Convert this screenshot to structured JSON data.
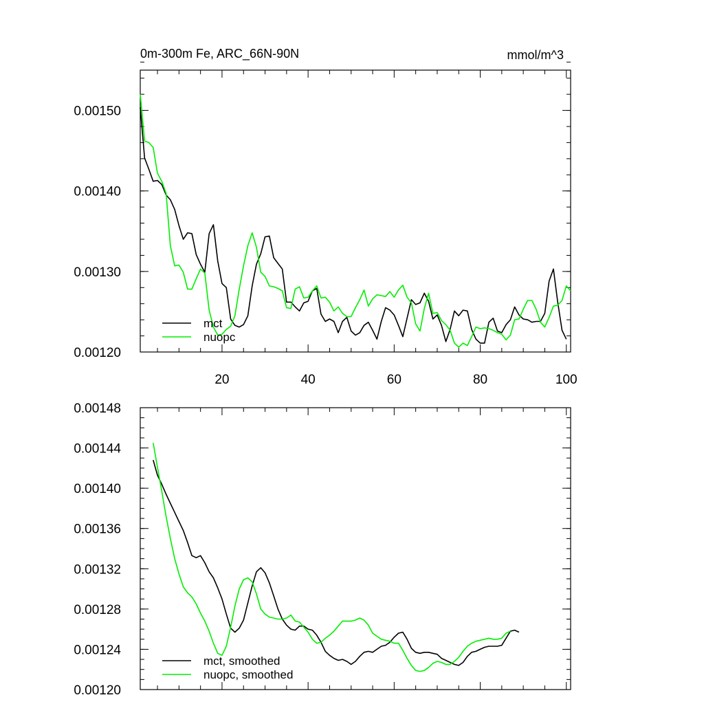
{
  "title_left": "0m-300m Fe, ARC_66N-90N",
  "title_right": "mmol/m^3",
  "chart_data": [
    {
      "type": "line",
      "name": "raw",
      "xlim": [
        1,
        101
      ],
      "ylim": [
        0.0012,
        0.00155
      ],
      "xticks": [
        20,
        40,
        60,
        80,
        100
      ],
      "xtick_labels": [
        "20",
        "40",
        "60",
        "80",
        "100"
      ],
      "yticks": [
        0.0012,
        0.0013,
        0.0014,
        0.0015
      ],
      "ytick_labels": [
        "0.00120",
        "0.00130",
        "0.00140",
        "0.00150"
      ],
      "legend_position": "bottom-left",
      "series": [
        {
          "name": "mct",
          "color": "#000000",
          "x_start": 1,
          "values": [
            0.001504,
            0.001441,
            0.001427,
            0.001412,
            0.001413,
            0.001408,
            0.001395,
            0.001389,
            0.001377,
            0.001357,
            0.00134,
            0.001348,
            0.001347,
            0.001321,
            0.001309,
            0.001299,
            0.001347,
            0.001358,
            0.001313,
            0.001285,
            0.00128,
            0.001241,
            0.001233,
            0.001231,
            0.001234,
            0.001245,
            0.001282,
            0.001309,
            0.001322,
            0.001343,
            0.001344,
            0.001317,
            0.00131,
            0.001303,
            0.001262,
            0.001262,
            0.001256,
            0.001251,
            0.001261,
            0.001263,
            0.001276,
            0.001279,
            0.001247,
            0.001238,
            0.001241,
            0.001238,
            0.001224,
            0.001238,
            0.001243,
            0.001226,
            0.001221,
            0.001224,
            0.001233,
            0.001237,
            0.001227,
            0.001216,
            0.001238,
            0.001255,
            0.001252,
            0.001246,
            0.001233,
            0.001219,
            0.001242,
            0.001265,
            0.001259,
            0.001261,
            0.001273,
            0.001263,
            0.001241,
            0.001246,
            0.001233,
            0.001213,
            0.001228,
            0.001251,
            0.001245,
            0.001252,
            0.001251,
            0.001228,
            0.001216,
            0.001211,
            0.001211,
            0.001237,
            0.001242,
            0.001226,
            0.001224,
            0.001234,
            0.00124,
            0.001256,
            0.001246,
            0.001241,
            0.00124,
            0.001237,
            0.001238,
            0.001238,
            0.001248,
            0.001288,
            0.001303,
            0.001262,
            0.001227,
            0.001216
          ]
        },
        {
          "name": "nuopc",
          "color": "#00ee00",
          "x_start": 1,
          "values": [
            0.00152,
            0.001462,
            0.00146,
            0.001454,
            0.001422,
            0.001412,
            0.001397,
            0.001332,
            0.001307,
            0.001308,
            0.001299,
            0.001278,
            0.001278,
            0.001291,
            0.001303,
            0.001298,
            0.001252,
            0.001231,
            0.001221,
            0.001222,
            0.001228,
            0.001232,
            0.001245,
            0.001278,
            0.001307,
            0.001332,
            0.001348,
            0.00133,
            0.001299,
            0.001294,
            0.001282,
            0.001281,
            0.001279,
            0.001276,
            0.001255,
            0.001254,
            0.001278,
            0.001281,
            0.001267,
            0.001268,
            0.001276,
            0.001282,
            0.001267,
            0.001268,
            0.001262,
            0.001251,
            0.001256,
            0.001248,
            0.001244,
            0.001244,
            0.001255,
            0.001265,
            0.001277,
            0.001257,
            0.001266,
            0.001271,
            0.00127,
            0.001269,
            0.001275,
            0.001268,
            0.001277,
            0.001283,
            0.001268,
            0.001261,
            0.001235,
            0.001226,
            0.001254,
            0.001273,
            0.001248,
            0.001249,
            0.001239,
            0.001234,
            0.001227,
            0.001211,
            0.001206,
            0.001211,
            0.001208,
            0.001219,
            0.001231,
            0.001229,
            0.00123,
            0.001229,
            0.001227,
            0.001224,
            0.001222,
            0.001215,
            0.001221,
            0.00124,
            0.001241,
            0.001253,
            0.001264,
            0.001264,
            0.001253,
            0.001237,
            0.001231,
            0.001243,
            0.001257,
            0.001258,
            0.001264,
            0.001282,
            0.001276
          ]
        }
      ],
      "legend": [
        "mct",
        "nuopc"
      ]
    },
    {
      "type": "line",
      "name": "smoothed",
      "xlim": [
        1,
        101
      ],
      "ylim": [
        0.0012,
        0.00148
      ],
      "yticks": [
        0.0012,
        0.00124,
        0.00128,
        0.00132,
        0.00136,
        0.0014,
        0.00144,
        0.00148
      ],
      "ytick_labels": [
        "0.00120",
        "0.00124",
        "0.00128",
        "0.00132",
        "0.00136",
        "0.00140",
        "0.00144",
        "0.00148"
      ],
      "xtick_labels": [],
      "legend_position": "bottom-left",
      "series": [
        {
          "name": "mct, smoothed",
          "color": "#000000",
          "x_start": 4,
          "values": [
            0.001428,
            0.001413,
            0.001404,
            0.001394,
            0.001385,
            0.001376,
            0.001367,
            0.001358,
            0.001346,
            0.001333,
            0.001331,
            0.001333,
            0.001326,
            0.001317,
            0.001311,
            0.001301,
            0.00129,
            0.001275,
            0.001261,
            0.001257,
            0.001261,
            0.001269,
            0.001286,
            0.001303,
            0.001317,
            0.001321,
            0.001316,
            0.001306,
            0.001293,
            0.00128,
            0.00127,
            0.001264,
            0.00126,
            0.001259,
            0.001263,
            0.001263,
            0.00126,
            0.001259,
            0.001254,
            0.001247,
            0.001238,
            0.001234,
            0.001231,
            0.001229,
            0.00123,
            0.001228,
            0.001225,
            0.001228,
            0.001233,
            0.001237,
            0.001238,
            0.001237,
            0.00124,
            0.001243,
            0.001244,
            0.001247,
            0.001252,
            0.001256,
            0.001257,
            0.00125,
            0.001241,
            0.001237,
            0.001236,
            0.001237,
            0.001237,
            0.001236,
            0.001235,
            0.001231,
            0.001229,
            0.001227,
            0.001225,
            0.001224,
            0.001227,
            0.001233,
            0.001237,
            0.001238,
            0.00124,
            0.001242,
            0.001243,
            0.001243,
            0.001243,
            0.001244,
            0.001251,
            0.001258,
            0.001259,
            0.001257
          ]
        },
        {
          "name": "nuopc, smoothed",
          "color": "#00ee00",
          "x_start": 4,
          "values": [
            0.001445,
            0.001421,
            0.001397,
            0.001372,
            0.00135,
            0.00133,
            0.001315,
            0.001302,
            0.001296,
            0.001292,
            0.001285,
            0.001276,
            0.001268,
            0.001258,
            0.001246,
            0.001236,
            0.001234,
            0.001243,
            0.001262,
            0.001283,
            0.0013,
            0.001309,
            0.001311,
            0.001307,
            0.001295,
            0.00128,
            0.001275,
            0.001272,
            0.001271,
            0.00127,
            0.00127,
            0.001271,
            0.001274,
            0.001268,
            0.001267,
            0.001262,
            0.001257,
            0.00125,
            0.001246,
            0.001247,
            0.001251,
            0.001254,
            0.001258,
            0.001263,
            0.001268,
            0.001268,
            0.001268,
            0.001269,
            0.001271,
            0.001269,
            0.001264,
            0.001256,
            0.001253,
            0.00125,
            0.001249,
            0.001248,
            0.001246,
            0.001246,
            0.001239,
            0.001231,
            0.001224,
            0.001219,
            0.001218,
            0.001219,
            0.001222,
            0.001226,
            0.001228,
            0.001227,
            0.001225,
            0.001225,
            0.001228,
            0.001232,
            0.001238,
            0.001243,
            0.001246,
            0.001248,
            0.001249,
            0.00125,
            0.001251,
            0.00125,
            0.00125,
            0.001251,
            0.001256,
            0.001258
          ]
        }
      ],
      "legend": [
        "mct, smoothed",
        "nuopc, smoothed"
      ]
    }
  ]
}
